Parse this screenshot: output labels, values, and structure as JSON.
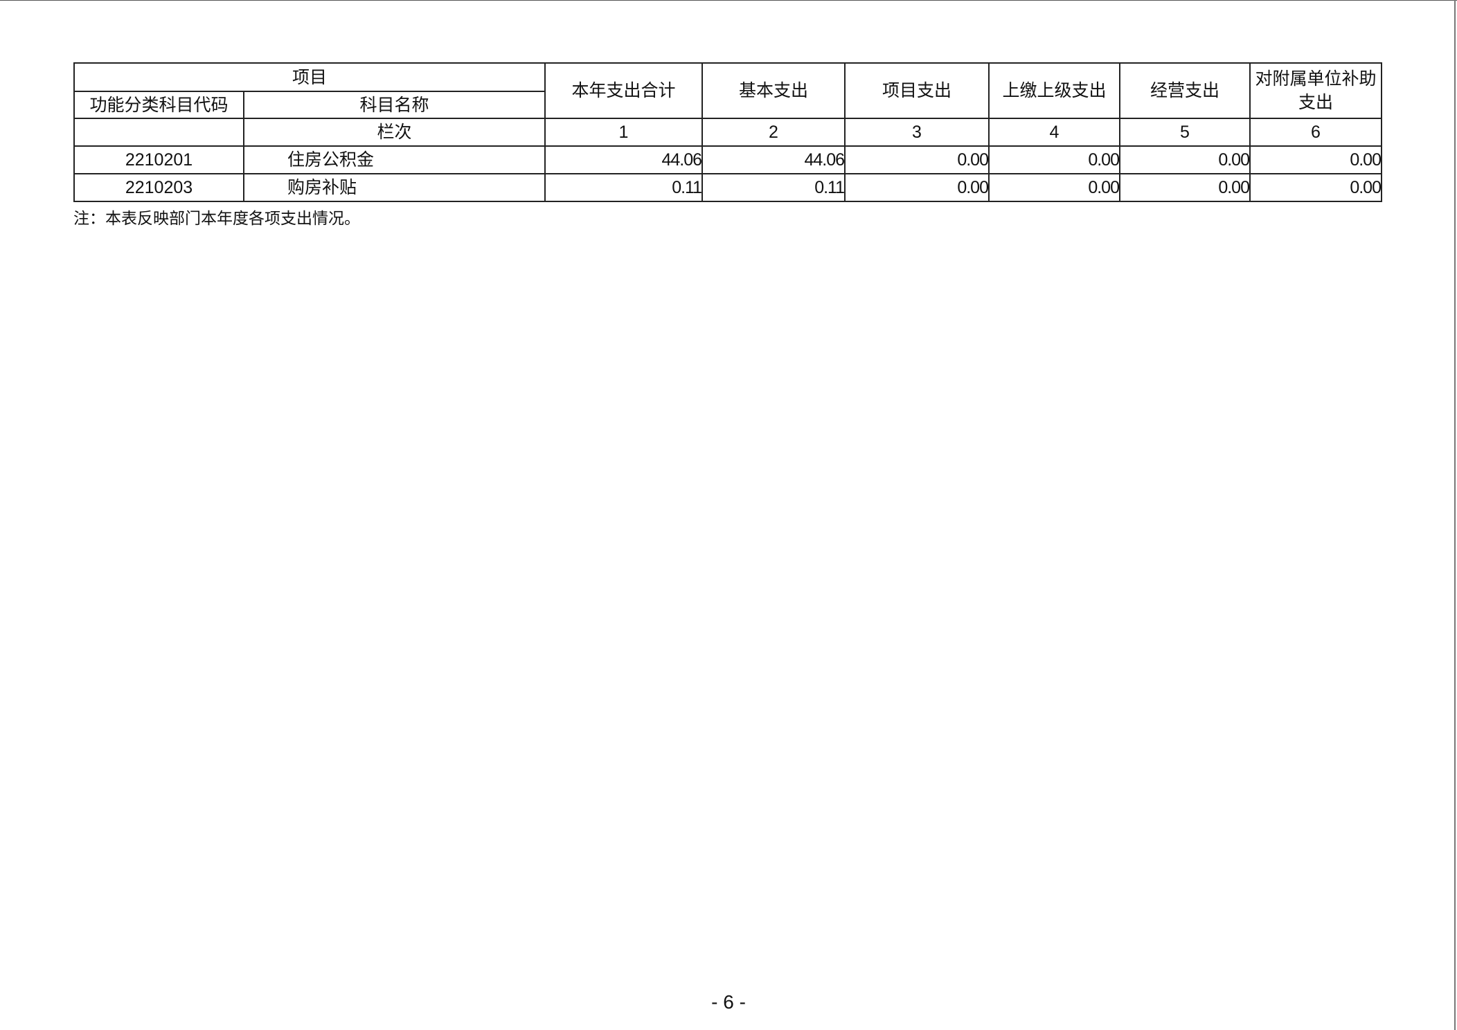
{
  "table": {
    "header": {
      "item": "项目",
      "code": "功能分类科目代码",
      "name": "科目名称",
      "columns": [
        "本年支出合计",
        "基本支出",
        "项目支出",
        "上缴上级支出",
        "经营支出",
        "对附属单位补助支出"
      ],
      "index_label": "栏次",
      "index": [
        "1",
        "2",
        "3",
        "4",
        "5",
        "6"
      ]
    },
    "rows": [
      {
        "code": "2210201",
        "name": "住房公积金",
        "values": [
          "44.06",
          "44.06",
          "0.00",
          "0.00",
          "0.00",
          "0.00"
        ]
      },
      {
        "code": "2210203",
        "name": "购房补贴",
        "values": [
          "0.11",
          "0.11",
          "0.00",
          "0.00",
          "0.00",
          "0.00"
        ]
      }
    ]
  },
  "note": "注：本表反映部门本年度各项支出情况。",
  "page_number": "- 6 -"
}
